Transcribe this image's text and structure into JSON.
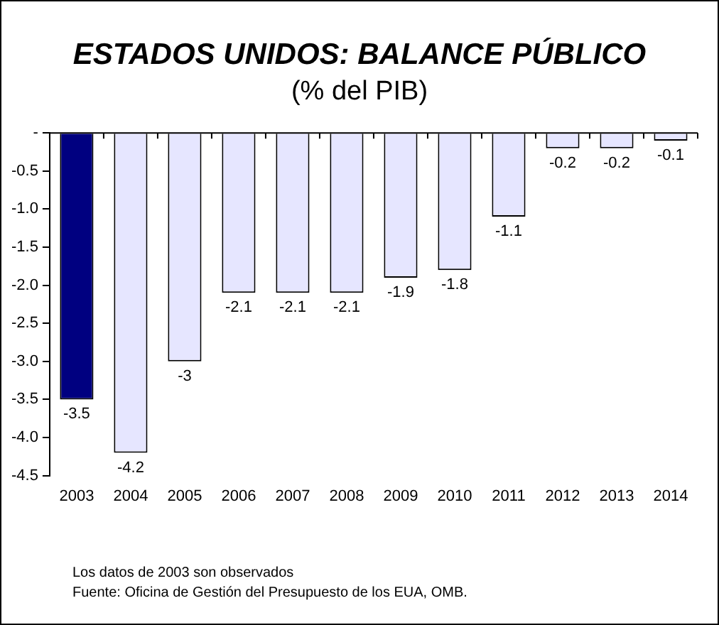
{
  "chart_data": {
    "type": "bar",
    "title": "ESTADOS UNIDOS: BALANCE PÚBLICO",
    "subtitle": "(% del PIB)",
    "categories": [
      "2003",
      "2004",
      "2005",
      "2006",
      "2007",
      "2008",
      "2009",
      "2010",
      "2011",
      "2012",
      "2013",
      "2014"
    ],
    "values": [
      -3.5,
      -4.2,
      -3,
      -2.1,
      -2.1,
      -2.1,
      -1.9,
      -1.8,
      -1.1,
      -0.2,
      -0.2,
      -0.1
    ],
    "colors": [
      "#000080",
      "#e6e6ff",
      "#e6e6ff",
      "#e6e6ff",
      "#e6e6ff",
      "#e6e6ff",
      "#e6e6ff",
      "#e6e6ff",
      "#e6e6ff",
      "#e6e6ff",
      "#e6e6ff",
      "#e6e6ff"
    ],
    "ylim": [
      -4.5,
      0
    ],
    "yticks": [
      {
        "value": 0,
        "label": "-"
      },
      -0.5,
      {
        "value": -1,
        "label": "-1.0"
      },
      -1.5,
      {
        "value": -2,
        "label": "-2.0"
      },
      -2.5,
      {
        "value": -3,
        "label": "-3.0"
      },
      -3.5,
      {
        "value": -4,
        "label": "-4.0"
      },
      -4.5
    ],
    "grid": false,
    "legend": false,
    "data_labels": true,
    "annotations": [
      "Los datos de 2003 son observados",
      "Fuente: Oficina de Gestión del Presupuesto de los  EUA, OMB."
    ]
  }
}
